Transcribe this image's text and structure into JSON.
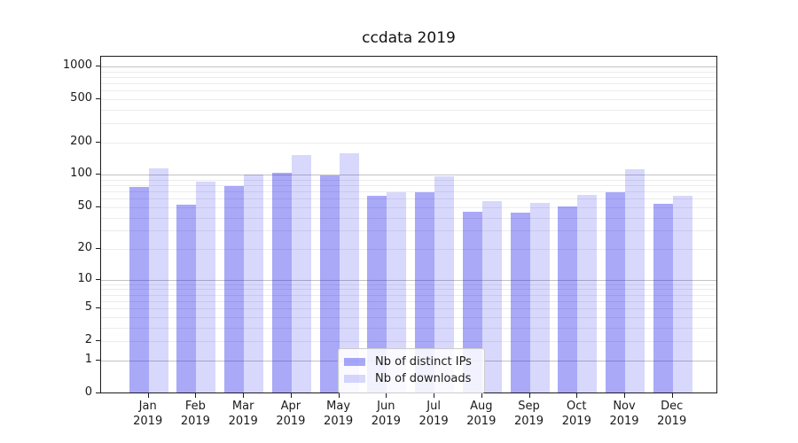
{
  "chart_data": {
    "type": "bar",
    "title": "ccdata 2019",
    "categories": [
      "Jan",
      "Feb",
      "Mar",
      "Apr",
      "May",
      "Jun",
      "Jul",
      "Aug",
      "Sep",
      "Oct",
      "Nov",
      "Dec"
    ],
    "category_year": "2019",
    "series": [
      {
        "name": "Nb of distinct IPs",
        "color": "rgba(10,10,235,0.35)",
        "color_hex": "#a8a8f6",
        "values": [
          75,
          51,
          76,
          100,
          95,
          61,
          66,
          44,
          43,
          49,
          67,
          52
        ]
      },
      {
        "name": "Nb of downloads",
        "color": "rgba(10,10,235,0.16)",
        "color_hex": "#d7d7f8",
        "values": [
          110,
          83,
          97,
          148,
          152,
          67,
          93,
          55,
          53,
          63,
          108,
          61
        ]
      }
    ],
    "y_axis": {
      "scale": "log1p",
      "tick_labels": [
        0,
        1,
        2,
        5,
        10,
        20,
        50,
        100,
        200,
        500,
        1000
      ],
      "major_gridlines": [
        1,
        10,
        100,
        1000
      ],
      "ylim": [
        0,
        1230
      ]
    },
    "x_axis": {
      "label_lines": 2
    },
    "legend": {
      "position": "bottom-center"
    },
    "colors": {
      "major_grid": "#c3c3c3",
      "minor_grid": "#ececec",
      "spine": "#1c1c1c",
      "text": "#1a1a1a"
    },
    "grid": true
  }
}
